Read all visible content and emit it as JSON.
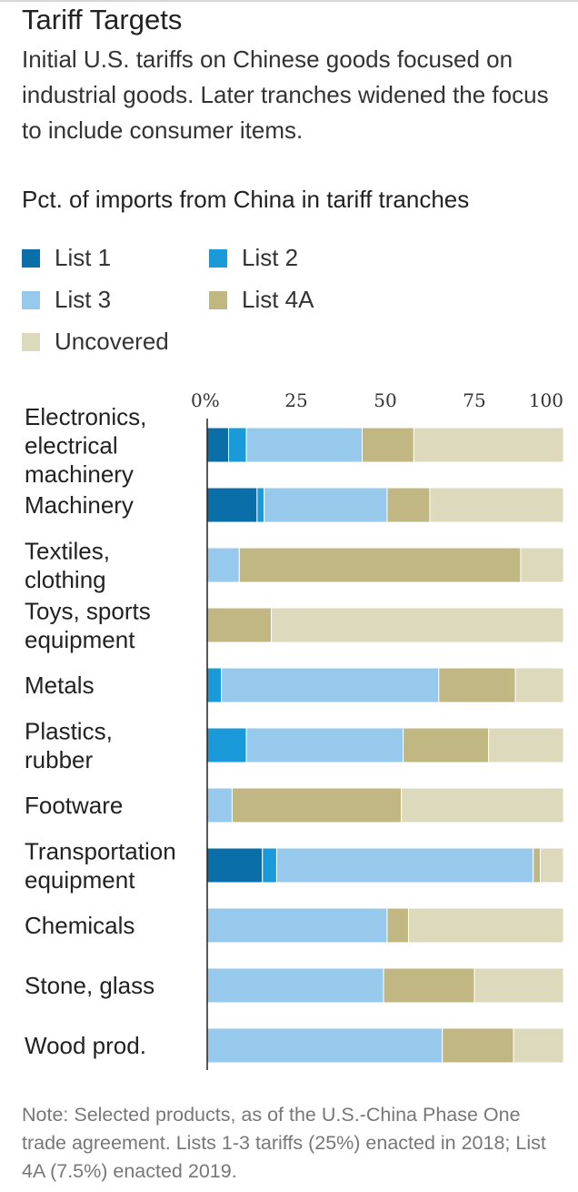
{
  "title": "Tariff Targets",
  "subtitle": "Initial U.S. tariffs on Chinese goods focused on industrial goods. Later tranches widened the focus to include consumer items.",
  "chart_label": "Pct. of imports from China in tariff tranches",
  "note": "Note: Selected products, as of the U.S.-China Phase One trade agreement. Lists 1-3 tariffs (25%) enacted in 2018; List 4A (7.5%) enacted 2019.",
  "colors": {
    "List 1": "#0a6ea8",
    "List 2": "#1a9ad9",
    "List 3": "#96c9ec",
    "List 4A": "#c1b783",
    "Uncovered": "#ddd9bd"
  },
  "chart_data": {
    "type": "bar",
    "orientation": "horizontal",
    "stacked": true,
    "categories": [
      "Electronics, electrical machinery",
      "Machinery",
      "Textiles, clothing",
      "Toys, sports equipment",
      "Metals",
      "Plastics, rubber",
      "Footware",
      "Transportation equipment",
      "Chemicals",
      "Stone, glass",
      "Wood prod."
    ],
    "series": [
      {
        "name": "List 1",
        "values": [
          6,
          14,
          0,
          0,
          0,
          0,
          0,
          15.5,
          0,
          0,
          0
        ]
      },
      {
        "name": "List 2",
        "values": [
          5,
          2,
          0,
          0,
          4,
          11,
          0,
          4,
          0,
          0,
          0
        ]
      },
      {
        "name": "List 3",
        "values": [
          32.5,
          34.5,
          9,
          0,
          61,
          44,
          7,
          72,
          50.5,
          49.5,
          66
        ]
      },
      {
        "name": "List 4A",
        "values": [
          14.5,
          12,
          79,
          18,
          21.5,
          24,
          47.5,
          2,
          6,
          25.5,
          20
        ]
      },
      {
        "name": "Uncovered",
        "values": [
          42,
          37.5,
          12,
          82,
          13.5,
          21,
          45.5,
          6.5,
          43.5,
          25,
          14
        ]
      }
    ],
    "x_ticks": [
      "0%",
      "25",
      "50",
      "75",
      "100"
    ],
    "xlim": [
      0,
      100
    ],
    "legend_position": "top",
    "grid": false
  }
}
